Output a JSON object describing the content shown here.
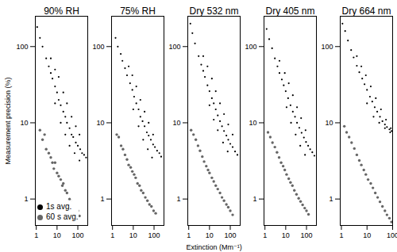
{
  "chart_data": [
    {
      "type": "scatter",
      "title": "90% RH",
      "y_label": "Measurement precision (%)",
      "log": true,
      "xlim": [
        0.9,
        300
      ],
      "ylim": [
        0.45,
        250
      ],
      "xticks": [
        1,
        10,
        100
      ],
      "yticks": [
        1,
        10,
        100
      ],
      "legend": "lower left",
      "series": [
        {
          "name": "1s avg.",
          "color": "#000000",
          "marker": "circle",
          "x": [
            1.1,
            1.5,
            2,
            3,
            4,
            5,
            6,
            8,
            10,
            12,
            15,
            20,
            25,
            30,
            40,
            50,
            60,
            80,
            100,
            130,
            160,
            200,
            250,
            5,
            8,
            12,
            20,
            30,
            50,
            80,
            120,
            8,
            15,
            25,
            40,
            70,
            120
          ],
          "values": [
            180,
            130,
            100,
            70,
            55,
            45,
            38,
            30,
            25,
            20,
            17,
            14,
            12,
            10,
            8.5,
            7,
            6.5,
            5.5,
            5,
            4.5,
            4,
            3.8,
            3.5,
            70,
            50,
            40,
            25,
            18,
            12,
            9,
            7,
            18,
            10,
            7,
            5,
            4,
            3.2
          ]
        },
        {
          "name": "60 s avg.",
          "color": "#666666",
          "marker": "circle",
          "x": [
            1.5,
            2,
            2.5,
            3,
            4,
            5,
            6,
            7,
            8,
            10,
            12,
            15,
            18,
            20,
            25,
            30,
            40,
            50,
            60,
            80,
            100,
            120
          ],
          "values": [
            8,
            6,
            7,
            4.5,
            4,
            3.5,
            3,
            2.5,
            3,
            2.2,
            2,
            1.8,
            1.5,
            1.6,
            1.3,
            1.2,
            1,
            0.9,
            0.8,
            0.75,
            0.7,
            0.6
          ]
        }
      ]
    },
    {
      "type": "scatter",
      "title": "75% RH",
      "log": true,
      "xlim": [
        0.9,
        300
      ],
      "ylim": [
        0.45,
        250
      ],
      "xticks": [
        1,
        10,
        100
      ],
      "yticks": [
        1,
        10,
        100
      ],
      "series": [
        {
          "name": "1s avg.",
          "color": "#000000",
          "marker": "circle",
          "x": [
            1.4,
            1.8,
            2.5,
            3,
            4,
            5,
            7,
            9,
            11,
            14,
            18,
            22,
            28,
            35,
            45,
            55,
            70,
            90,
            110,
            140,
            180,
            220,
            6,
            9,
            14,
            22,
            35,
            55,
            90,
            10,
            18,
            30,
            50,
            80
          ],
          "values": [
            130,
            100,
            80,
            65,
            52,
            42,
            33,
            27,
            22,
            18,
            15,
            12,
            10.5,
            9,
            7.5,
            6.8,
            6,
            5.2,
            4.8,
            4.3,
            4,
            3.6,
            55,
            42,
            30,
            20,
            14,
            10,
            7,
            15,
            9,
            6,
            4.5,
            3.5
          ]
        },
        {
          "name": "60 s avg.",
          "color": "#666666",
          "marker": "circle",
          "x": [
            1.6,
            2,
            2.6,
            3.2,
            4,
            5,
            6,
            7.5,
            9,
            11,
            13,
            16,
            20,
            24,
            30,
            38,
            48,
            60,
            75,
            95,
            120
          ],
          "values": [
            7,
            6.5,
            5,
            4.5,
            3.8,
            3.3,
            2.8,
            2.6,
            2.3,
            2.1,
            1.9,
            1.6,
            1.5,
            1.3,
            1.2,
            1.05,
            0.95,
            0.85,
            0.8,
            0.7,
            0.65
          ]
        }
      ]
    },
    {
      "type": "scatter",
      "title": "Dry 532 nm",
      "x_label": "Extinction (Mm⁻¹)",
      "log": true,
      "xlim": [
        0.9,
        300
      ],
      "ylim": [
        0.45,
        250
      ],
      "xticks": [
        1,
        10,
        100
      ],
      "yticks": [
        1,
        10,
        100
      ],
      "series": [
        {
          "name": "1s avg.",
          "color": "#000000",
          "marker": "circle",
          "x": [
            1.2,
            1.5,
            2,
            3,
            4,
            5,
            6,
            8,
            10,
            13,
            16,
            20,
            25,
            32,
            40,
            50,
            65,
            80,
            100,
            130,
            170,
            220,
            5,
            8,
            13,
            20,
            32,
            50,
            80,
            130,
            10,
            16,
            25,
            45,
            75
          ],
          "values": [
            200,
            150,
            110,
            75,
            58,
            48,
            40,
            31,
            26,
            21,
            18,
            15,
            12.5,
            10.5,
            9,
            7.8,
            6.8,
            6,
            5.3,
            4.8,
            4.2,
            3.8,
            75,
            55,
            38,
            26,
            18,
            13,
            9.5,
            7,
            17,
            11,
            8,
            5.5,
            4.2
          ]
        },
        {
          "name": "60 s avg.",
          "color": "#666666",
          "marker": "circle",
          "x": [
            1.3,
            1.7,
            2.2,
            2.8,
            3.5,
            4.5,
            5.5,
            7,
            8.5,
            10,
            13,
            16,
            20,
            25,
            32,
            40,
            50,
            65,
            80,
            100,
            130
          ],
          "values": [
            8,
            7,
            6,
            5,
            4.3,
            3.6,
            3.1,
            2.7,
            2.4,
            2.2,
            1.9,
            1.7,
            1.5,
            1.35,
            1.2,
            1.05,
            0.95,
            0.85,
            0.78,
            0.7,
            0.62
          ]
        }
      ]
    },
    {
      "type": "scatter",
      "title": "Dry 405 nm",
      "log": true,
      "xlim": [
        0.9,
        300
      ],
      "ylim": [
        0.45,
        250
      ],
      "xticks": [
        1,
        10,
        100
      ],
      "yticks": [
        1,
        10,
        100
      ],
      "series": [
        {
          "name": "1s avg.",
          "color": "#000000",
          "marker": "circle",
          "x": [
            1.2,
            1.6,
            2.2,
            3,
            4,
            5,
            6.5,
            8,
            10,
            13,
            17,
            22,
            28,
            35,
            45,
            58,
            75,
            95,
            120,
            150,
            190,
            240,
            5,
            9,
            14,
            22,
            35,
            55,
            90,
            11,
            18,
            30,
            50,
            85
          ],
          "values": [
            170,
            125,
            95,
            70,
            55,
            45,
            37,
            31,
            26,
            21,
            17,
            14,
            12,
            10,
            8.6,
            7.4,
            6.4,
            5.6,
            5,
            4.5,
            4.1,
            3.7,
            65,
            45,
            33,
            23,
            16,
            11.5,
            8,
            16,
            10,
            7,
            5,
            3.8
          ]
        },
        {
          "name": "60 s avg.",
          "color": "#666666",
          "marker": "circle",
          "x": [
            1.4,
            1.8,
            2.3,
            3,
            3.8,
            4.8,
            6,
            7.5,
            9,
            11,
            14,
            17,
            21,
            26,
            33,
            42,
            52,
            65,
            82,
            100,
            125
          ],
          "values": [
            7.5,
            6.5,
            5.5,
            4.8,
            4.1,
            3.5,
            3,
            2.7,
            2.4,
            2.1,
            1.85,
            1.65,
            1.5,
            1.3,
            1.15,
            1.02,
            0.93,
            0.84,
            0.76,
            0.7,
            0.63
          ]
        }
      ]
    },
    {
      "type": "scatter",
      "title": "Dry 664 nm",
      "log": true,
      "xlim": [
        0.9,
        100
      ],
      "ylim": [
        0.45,
        250
      ],
      "xticks": [
        1,
        10,
        100
      ],
      "yticks": [
        1,
        10,
        100
      ],
      "series": [
        {
          "name": "1s avg.",
          "color": "#000000",
          "marker": "circle",
          "x": [
            1.1,
            1.4,
            1.8,
            2.4,
            3,
            4,
            5,
            6.5,
            8,
            10,
            13,
            16,
            20,
            25,
            32,
            40,
            50,
            60,
            75,
            90,
            4,
            6,
            9,
            14,
            22,
            35,
            55,
            85,
            10,
            18,
            30,
            50,
            80
          ],
          "values": [
            200,
            160,
            120,
            90,
            72,
            56,
            46,
            38,
            32,
            27,
            22,
            19,
            16,
            14,
            12,
            10.5,
            9.5,
            8.8,
            8.2,
            7.8,
            75,
            55,
            42,
            30,
            21,
            15,
            11,
            8.5,
            18,
            12,
            10,
            8.5,
            7.5
          ]
        },
        {
          "name": "60 s avg.",
          "color": "#666666",
          "marker": "circle",
          "x": [
            1.3,
            1.6,
            2,
            2.5,
            3.2,
            4,
            5,
            6,
            7.5,
            9,
            11,
            14,
            17,
            21,
            26,
            32,
            40,
            50,
            60,
            75,
            90
          ],
          "values": [
            9,
            7.5,
            6.5,
            5.5,
            4.6,
            3.8,
            3.2,
            2.8,
            2.4,
            2.1,
            1.8,
            1.6,
            1.4,
            1.2,
            1.05,
            0.92,
            0.8,
            0.7,
            0.62,
            0.56,
            0.5
          ]
        }
      ]
    }
  ]
}
